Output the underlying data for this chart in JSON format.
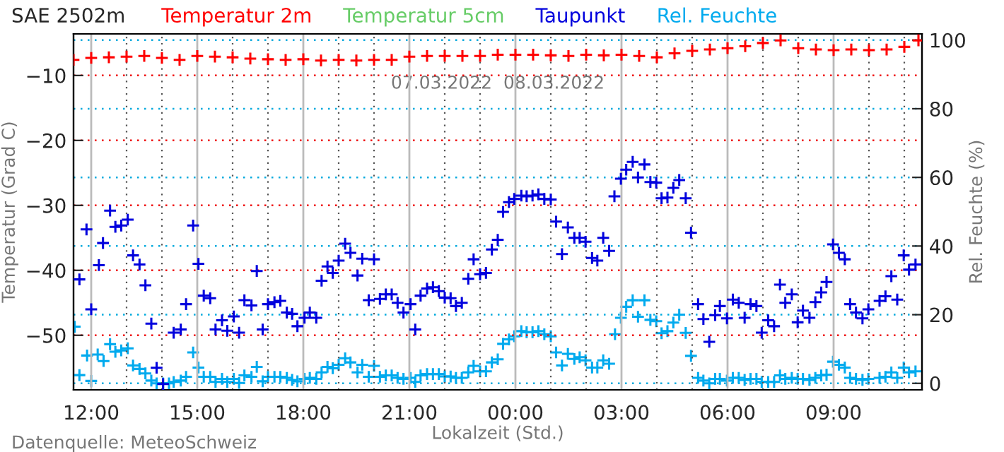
{
  "chart_data": {
    "type": "scatter",
    "title": "SAE 2502m",
    "xlabel": "Lokalzeit (Std.)",
    "ylabel": "Temperatur (Grad C)",
    "y2label": "Rel. Feuchte (%)",
    "annotations": [
      "07.03.2022  08.03.2022",
      "Datenquelle: MeteoSchweiz"
    ],
    "xlim": [
      "2022-03-07T11:30",
      "2022-03-08T11:30"
    ],
    "xticks": [
      {
        "value": "2022-03-07T12:00",
        "label": "12:00"
      },
      {
        "value": "2022-03-07T13:00",
        "label": null
      },
      {
        "value": "2022-03-07T14:00",
        "label": null
      },
      {
        "value": "2022-03-07T15:00",
        "label": "15:00"
      },
      {
        "value": "2022-03-07T16:00",
        "label": null
      },
      {
        "value": "2022-03-07T17:00",
        "label": null
      },
      {
        "value": "2022-03-07T18:00",
        "label": "18:00"
      },
      {
        "value": "2022-03-07T19:00",
        "label": null
      },
      {
        "value": "2022-03-07T20:00",
        "label": null
      },
      {
        "value": "2022-03-07T21:00",
        "label": "21:00"
      },
      {
        "value": "2022-03-07T22:00",
        "label": null
      },
      {
        "value": "2022-03-07T23:00",
        "label": null
      },
      {
        "value": "2022-03-08T00:00",
        "label": "00:00"
      },
      {
        "value": "2022-03-08T01:00",
        "label": null
      },
      {
        "value": "2022-03-08T02:00",
        "label": null
      },
      {
        "value": "2022-03-08T03:00",
        "label": "03:00"
      },
      {
        "value": "2022-03-08T04:00",
        "label": null
      },
      {
        "value": "2022-03-08T05:00",
        "label": null
      },
      {
        "value": "2022-03-08T06:00",
        "label": "06:00"
      },
      {
        "value": "2022-03-08T07:00",
        "label": null
      },
      {
        "value": "2022-03-08T08:00",
        "label": null
      },
      {
        "value": "2022-03-08T09:00",
        "label": "09:00"
      },
      {
        "value": "2022-03-08T10:00",
        "label": null
      },
      {
        "value": "2022-03-08T11:00",
        "label": null
      }
    ],
    "ylim": [
      -58.4,
      -3.6
    ],
    "yticks": [
      {
        "value": -10,
        "label": "−10"
      },
      {
        "value": -20,
        "label": "−20"
      },
      {
        "value": -30,
        "label": "−30"
      },
      {
        "value": -40,
        "label": "−40"
      },
      {
        "value": -50,
        "label": "−50"
      }
    ],
    "y2lim": [
      -1.9,
      101.8
    ],
    "y2ticks": [
      0,
      20,
      40,
      60,
      80,
      100
    ],
    "grid": true,
    "legend": "top",
    "marker": "cross",
    "series": [
      {
        "name": "Temperatur 2m",
        "color": "#ff0000",
        "x": [
          "2022-03-07T11:30",
          "2022-03-07T12:00",
          "2022-03-07T12:30",
          "2022-03-07T13:00",
          "2022-03-07T13:30",
          "2022-03-07T14:00",
          "2022-03-07T14:30",
          "2022-03-07T15:00",
          "2022-03-07T15:30",
          "2022-03-07T16:00",
          "2022-03-07T16:30",
          "2022-03-07T17:00",
          "2022-03-07T17:30",
          "2022-03-07T18:00",
          "2022-03-07T18:30",
          "2022-03-07T19:00",
          "2022-03-07T19:30",
          "2022-03-07T20:00",
          "2022-03-07T20:30",
          "2022-03-07T21:00",
          "2022-03-07T21:30",
          "2022-03-07T22:00",
          "2022-03-07T22:30",
          "2022-03-07T23:00",
          "2022-03-07T23:30",
          "2022-03-08T00:00",
          "2022-03-08T00:30",
          "2022-03-08T01:00",
          "2022-03-08T01:30",
          "2022-03-08T02:00",
          "2022-03-08T02:30",
          "2022-03-08T03:00",
          "2022-03-08T03:30",
          "2022-03-08T04:00",
          "2022-03-08T04:30",
          "2022-03-08T05:00",
          "2022-03-08T05:30",
          "2022-03-08T06:00",
          "2022-03-08T06:30",
          "2022-03-08T07:00",
          "2022-03-08T07:30",
          "2022-03-08T08:00",
          "2022-03-08T08:30",
          "2022-03-08T09:00",
          "2022-03-08T09:30",
          "2022-03-08T10:00",
          "2022-03-08T10:30",
          "2022-03-08T11:00",
          "2022-03-08T11:24"
        ],
        "values": [
          -7.6,
          -7.3,
          -7.2,
          -7.1,
          -7.0,
          -7.3,
          -7.6,
          -7.0,
          -7.1,
          -7.2,
          -7.4,
          -7.5,
          -7.6,
          -7.5,
          -7.7,
          -7.6,
          -7.7,
          -7.6,
          -7.6,
          -7.1,
          -7.0,
          -7.0,
          -7.0,
          -7.0,
          -6.8,
          -6.8,
          -6.8,
          -6.9,
          -7.0,
          -6.8,
          -6.9,
          -6.8,
          -7.0,
          -7.2,
          -6.6,
          -6.2,
          -6.0,
          -5.8,
          -5.5,
          -5.0,
          -4.6,
          -5.8,
          -6.0,
          -6.1,
          -6.0,
          -6.1,
          -6.0,
          -5.6,
          -4.6
        ]
      },
      {
        "name": "Temperatur 5cm",
        "color": "#66cc66"
      },
      {
        "name": "Taupunkt",
        "color": "#0000dd",
        "x": [
          "2022-03-07T11:40",
          "2022-03-07T11:52",
          "2022-03-07T12:00",
          "2022-03-07T12:13",
          "2022-03-07T12:20",
          "2022-03-07T12:32",
          "2022-03-07T12:41",
          "2022-03-07T12:51",
          "2022-03-07T13:02",
          "2022-03-07T13:11",
          "2022-03-07T13:22",
          "2022-03-07T13:32",
          "2022-03-07T13:42",
          "2022-03-07T13:51",
          "2022-03-07T14:02",
          "2022-03-07T14:20",
          "2022-03-07T14:32",
          "2022-03-07T14:41",
          "2022-03-07T14:53",
          "2022-03-07T15:02",
          "2022-03-07T15:11",
          "2022-03-07T15:22",
          "2022-03-07T15:31",
          "2022-03-07T15:42",
          "2022-03-07T15:51",
          "2022-03-07T16:02",
          "2022-03-07T16:11",
          "2022-03-07T16:20",
          "2022-03-07T16:32",
          "2022-03-07T16:41",
          "2022-03-07T16:51",
          "2022-03-07T17:00",
          "2022-03-07T17:11",
          "2022-03-07T17:21",
          "2022-03-07T17:32",
          "2022-03-07T17:41",
          "2022-03-07T17:50",
          "2022-03-07T18:02",
          "2022-03-07T18:11",
          "2022-03-07T18:22",
          "2022-03-07T18:31",
          "2022-03-07T18:41",
          "2022-03-07T18:50",
          "2022-03-07T19:00",
          "2022-03-07T19:11",
          "2022-03-07T19:20",
          "2022-03-07T19:32",
          "2022-03-07T19:40",
          "2022-03-07T19:51",
          "2022-03-07T20:00",
          "2022-03-07T20:10",
          "2022-03-07T20:20",
          "2022-03-07T20:30",
          "2022-03-07T20:40",
          "2022-03-07T20:50",
          "2022-03-07T21:02",
          "2022-03-07T21:10",
          "2022-03-07T21:19",
          "2022-03-07T21:30",
          "2022-03-07T21:40",
          "2022-03-07T21:50",
          "2022-03-07T22:00",
          "2022-03-07T22:10",
          "2022-03-07T22:19",
          "2022-03-07T22:29",
          "2022-03-07T22:40",
          "2022-03-07T22:49",
          "2022-03-07T23:00",
          "2022-03-07T23:10",
          "2022-03-07T23:20",
          "2022-03-07T23:30",
          "2022-03-07T23:39",
          "2022-03-07T23:49",
          "2022-03-07T23:58",
          "2022-03-08T00:10",
          "2022-03-08T00:19",
          "2022-03-08T00:29",
          "2022-03-08T00:39",
          "2022-03-08T00:49",
          "2022-03-08T01:00",
          "2022-03-08T01:09",
          "2022-03-08T01:19",
          "2022-03-08T01:29",
          "2022-03-08T01:40",
          "2022-03-08T01:49",
          "2022-03-08T01:59",
          "2022-03-08T02:10",
          "2022-03-08T02:19",
          "2022-03-08T02:29",
          "2022-03-08T02:39",
          "2022-03-08T02:48",
          "2022-03-08T02:59",
          "2022-03-08T03:08",
          "2022-03-08T03:19",
          "2022-03-08T03:28",
          "2022-03-08T03:39",
          "2022-03-08T03:49",
          "2022-03-08T03:59",
          "2022-03-08T04:08",
          "2022-03-08T04:18",
          "2022-03-08T04:28",
          "2022-03-08T04:38",
          "2022-03-08T04:49",
          "2022-03-08T04:58",
          "2022-03-08T05:10",
          "2022-03-08T05:19",
          "2022-03-08T05:29",
          "2022-03-08T05:39",
          "2022-03-08T05:47",
          "2022-03-08T05:59",
          "2022-03-08T06:09",
          "2022-03-08T06:19",
          "2022-03-08T06:29",
          "2022-03-08T06:39",
          "2022-03-08T06:49",
          "2022-03-08T06:58",
          "2022-03-08T07:09",
          "2022-03-08T07:19",
          "2022-03-08T07:29",
          "2022-03-08T07:38",
          "2022-03-08T07:49",
          "2022-03-08T07:59",
          "2022-03-08T08:08",
          "2022-03-08T08:19",
          "2022-03-08T08:29",
          "2022-03-08T08:39",
          "2022-03-08T08:48",
          "2022-03-08T08:59",
          "2022-03-08T09:09",
          "2022-03-08T09:19",
          "2022-03-08T09:28",
          "2022-03-08T09:38",
          "2022-03-08T09:49",
          "2022-03-08T09:59",
          "2022-03-08T10:18",
          "2022-03-08T10:28",
          "2022-03-08T10:38",
          "2022-03-08T10:48",
          "2022-03-08T10:59",
          "2022-03-08T11:08",
          "2022-03-08T11:19"
        ],
        "values": [
          -41.4,
          -33.7,
          -46.0,
          -39.2,
          -35.8,
          -30.8,
          -33.3,
          -33.1,
          -32.2,
          -37.7,
          -39.1,
          -42.3,
          -48.2,
          -55.0,
          -57.5,
          -49.6,
          -49.1,
          -45.2,
          -33.1,
          -39.0,
          -43.9,
          -44.3,
          -49.1,
          -47.7,
          -49.3,
          -47.1,
          -49.6,
          -44.6,
          -45.4,
          -40.1,
          -49.1,
          -45.2,
          -44.9,
          -44.7,
          -46.5,
          -46.7,
          -48.6,
          -47.3,
          -46.5,
          -47.3,
          -41.6,
          -39.4,
          -40.4,
          -38.5,
          -35.9,
          -37.3,
          -40.8,
          -38.2,
          -44.6,
          -38.3,
          -44.4,
          -43.7,
          -43.7,
          -45.0,
          -46.5,
          -45.2,
          -49.1,
          -43.9,
          -42.8,
          -42.6,
          -43.2,
          -44.2,
          -44.3,
          -45.5,
          -45.0,
          -41.3,
          -38.3,
          -40.6,
          -40.4,
          -36.8,
          -35.3,
          -31.0,
          -29.5,
          -29.0,
          -28.5,
          -28.6,
          -28.5,
          -28.3,
          -29.0,
          -29.1,
          -32.5,
          -37.5,
          -33.4,
          -35.0,
          -35.0,
          -35.6,
          -38.1,
          -38.5,
          -35.0,
          -37.0,
          -28.6,
          -25.9,
          -24.5,
          -23.3,
          -25.7,
          -23.7,
          -26.4,
          -26.5,
          -28.9,
          -28.8,
          -27.3,
          -26.1,
          -28.9,
          -34.2,
          -45.2,
          -47.5,
          -51.0,
          -46.9,
          -45.5,
          -47.4,
          -44.5,
          -45.0,
          -47.3,
          -45.2,
          -45.5,
          -49.6,
          -47.7,
          -48.6,
          -42.2,
          -45.0,
          -43.7,
          -48.0,
          -46.2,
          -47.3,
          -44.9,
          -43.4,
          -41.8,
          -36.0,
          -37.3,
          -38.3,
          -45.2,
          -46.5,
          -47.4,
          -46.0,
          -44.7,
          -44.0,
          -40.9,
          -44.5,
          -37.7,
          -39.9,
          -39.1
        ]
      },
      {
        "name": "Rel. Feuchte",
        "color": "#00aaee",
        "axis": "y2",
        "x": [
          "2022-03-07T11:32",
          "2022-03-07T11:40",
          "2022-03-07T11:53",
          "2022-03-07T12:00",
          "2022-03-07T12:11",
          "2022-03-07T12:21",
          "2022-03-07T12:32",
          "2022-03-07T12:41",
          "2022-03-07T12:51",
          "2022-03-07T13:02",
          "2022-03-07T13:11",
          "2022-03-07T13:22",
          "2022-03-07T13:32",
          "2022-03-07T13:42",
          "2022-03-07T13:51",
          "2022-03-07T14:02",
          "2022-03-07T14:12",
          "2022-03-07T14:20",
          "2022-03-07T14:32",
          "2022-03-07T14:41",
          "2022-03-07T14:53",
          "2022-03-07T15:02",
          "2022-03-07T15:11",
          "2022-03-07T15:22",
          "2022-03-07T15:31",
          "2022-03-07T15:42",
          "2022-03-07T15:51",
          "2022-03-07T16:02",
          "2022-03-07T16:11",
          "2022-03-07T16:20",
          "2022-03-07T16:32",
          "2022-03-07T16:41",
          "2022-03-07T16:51",
          "2022-03-07T17:00",
          "2022-03-07T17:11",
          "2022-03-07T17:21",
          "2022-03-07T17:32",
          "2022-03-07T17:41",
          "2022-03-07T17:50",
          "2022-03-07T18:02",
          "2022-03-07T18:11",
          "2022-03-07T18:22",
          "2022-03-07T18:31",
          "2022-03-07T18:41",
          "2022-03-07T18:50",
          "2022-03-07T19:00",
          "2022-03-07T19:11",
          "2022-03-07T19:20",
          "2022-03-07T19:32",
          "2022-03-07T19:40",
          "2022-03-07T19:51",
          "2022-03-07T20:00",
          "2022-03-07T20:10",
          "2022-03-07T20:20",
          "2022-03-07T20:30",
          "2022-03-07T20:40",
          "2022-03-07T20:50",
          "2022-03-07T21:02",
          "2022-03-07T21:10",
          "2022-03-07T21:19",
          "2022-03-07T21:30",
          "2022-03-07T21:40",
          "2022-03-07T21:50",
          "2022-03-07T22:00",
          "2022-03-07T22:10",
          "2022-03-07T22:19",
          "2022-03-07T22:29",
          "2022-03-07T22:40",
          "2022-03-07T22:49",
          "2022-03-07T23:00",
          "2022-03-07T23:10",
          "2022-03-07T23:20",
          "2022-03-07T23:30",
          "2022-03-07T23:39",
          "2022-03-07T23:49",
          "2022-03-07T23:58",
          "2022-03-08T00:10",
          "2022-03-08T00:19",
          "2022-03-08T00:29",
          "2022-03-08T00:39",
          "2022-03-08T00:49",
          "2022-03-08T01:00",
          "2022-03-08T01:09",
          "2022-03-08T01:19",
          "2022-03-08T01:29",
          "2022-03-08T01:40",
          "2022-03-08T01:49",
          "2022-03-08T01:59",
          "2022-03-08T02:10",
          "2022-03-08T02:19",
          "2022-03-08T02:29",
          "2022-03-08T02:39",
          "2022-03-08T02:49",
          "2022-03-08T02:59",
          "2022-03-08T03:08",
          "2022-03-08T03:19",
          "2022-03-08T03:28",
          "2022-03-08T03:39",
          "2022-03-08T03:49",
          "2022-03-08T03:59",
          "2022-03-08T04:08",
          "2022-03-08T04:18",
          "2022-03-08T04:28",
          "2022-03-08T04:38",
          "2022-03-08T04:49",
          "2022-03-08T04:58",
          "2022-03-08T05:10",
          "2022-03-08T05:19",
          "2022-03-08T05:29",
          "2022-03-08T05:39",
          "2022-03-08T05:47",
          "2022-03-08T05:59",
          "2022-03-08T06:09",
          "2022-03-08T06:19",
          "2022-03-08T06:29",
          "2022-03-08T06:39",
          "2022-03-08T06:49",
          "2022-03-08T06:58",
          "2022-03-08T07:09",
          "2022-03-08T07:19",
          "2022-03-08T07:29",
          "2022-03-08T07:38",
          "2022-03-08T07:49",
          "2022-03-08T07:59",
          "2022-03-08T08:08",
          "2022-03-08T08:19",
          "2022-03-08T08:29",
          "2022-03-08T08:39",
          "2022-03-08T08:48",
          "2022-03-08T08:59",
          "2022-03-08T09:09",
          "2022-03-08T09:19",
          "2022-03-08T09:28",
          "2022-03-08T09:38",
          "2022-03-08T09:49",
          "2022-03-08T09:59",
          "2022-03-08T10:18",
          "2022-03-08T10:28",
          "2022-03-08T10:38",
          "2022-03-08T10:48",
          "2022-03-08T10:59",
          "2022-03-08T11:08",
          "2022-03-08T11:19"
        ],
        "values": [
          16.5,
          2.4,
          8.1,
          0.7,
          8.4,
          6.5,
          11.4,
          9.2,
          9.6,
          10.2,
          5.2,
          4.2,
          2.9,
          0.8,
          0,
          0,
          0,
          0.4,
          0.8,
          1.9,
          9.0,
          4.6,
          1.9,
          1.9,
          0.4,
          1.3,
          0.4,
          1.3,
          0.1,
          2.3,
          1.9,
          4.8,
          0.6,
          1.9,
          1.9,
          1.9,
          1.6,
          1.0,
          0.6,
          1.3,
          1.6,
          1.3,
          3.2,
          4.8,
          4.4,
          5.4,
          7.3,
          6.1,
          3.2,
          5.4,
          1.9,
          5.1,
          1.9,
          2.3,
          2.3,
          1.6,
          1.3,
          1.6,
          0.4,
          2.3,
          2.7,
          2.7,
          2.7,
          2.0,
          2.0,
          1.6,
          1.6,
          3.2,
          5.1,
          3.5,
          3.5,
          6.1,
          7.0,
          11.5,
          12.8,
          13.7,
          15.2,
          14.9,
          14.9,
          15.2,
          14.3,
          13.7,
          9.0,
          5.2,
          8.6,
          7.1,
          7.6,
          6.7,
          4.6,
          4.6,
          6.7,
          5.7,
          14.3,
          19.1,
          22.3,
          24.2,
          19.4,
          24.2,
          18.5,
          18.1,
          14.6,
          15.2,
          17.7,
          20.0,
          14.7,
          8.0,
          1.6,
          0.8,
          0,
          1.3,
          1.3,
          0.8,
          1.6,
          1.6,
          1.0,
          1.3,
          1.3,
          0.4,
          0.4,
          0.4,
          2.3,
          1.3,
          1.6,
          1.3,
          1.3,
          1.0,
          1.6,
          2.3,
          2.5,
          6.3,
          5.4,
          4.6,
          1.6,
          1.3,
          1.0,
          1.3,
          1.6,
          1.9,
          3.2,
          1.6,
          4.6,
          3.2,
          3.5
        ]
      }
    ]
  }
}
